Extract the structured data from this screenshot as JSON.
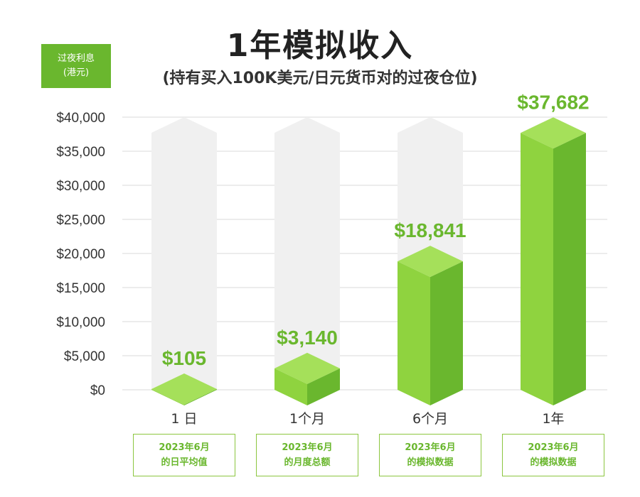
{
  "title": "1年模拟收入",
  "subtitle": "(持有买入100K美元/日元货币对的过夜仓位)",
  "unit_box": {
    "line1": "过夜利息",
    "line2": "(港元)",
    "color": "#6ab72e"
  },
  "colors": {
    "bar_front": "#8fd33f",
    "bar_side": "#6ab72e",
    "bar_top": "#a5e05a",
    "ghost": "#f0f0f0",
    "label": "#6ab72e"
  },
  "chart_data": {
    "type": "bar",
    "title": "1年模拟收入",
    "subtitle": "(持有买入100K美元/日元货币对的过夜仓位)",
    "ylabel": "过夜利息 (港元)",
    "xlabel": "",
    "categories": [
      "1 日",
      "1个月",
      "6个月",
      "1年"
    ],
    "values": [
      105,
      3140,
      18841,
      37682
    ],
    "value_labels": [
      "$105",
      "$3,140",
      "$18,841",
      "$37,682"
    ],
    "ylim": [
      0,
      40000
    ],
    "yticks": [
      {
        "value": 0,
        "label": "$0"
      },
      {
        "value": 5000,
        "label": "$5,000"
      },
      {
        "value": 10000,
        "label": "$10,000"
      },
      {
        "value": 15000,
        "label": "$15,000"
      },
      {
        "value": 20000,
        "label": "$20,000"
      },
      {
        "value": 25000,
        "label": "$25,000"
      },
      {
        "value": 30000,
        "label": "$30,000"
      },
      {
        "value": 35000,
        "label": "$35,000"
      },
      {
        "value": 40000,
        "label": "$40,000"
      }
    ],
    "grid": true,
    "legend": "none"
  },
  "notes": [
    {
      "line1": "2023年6月",
      "line2": "的日平均值"
    },
    {
      "line1": "2023年6月",
      "line2": "的月度总额"
    },
    {
      "line1": "2023年6月",
      "line2": "的模拟数据"
    },
    {
      "line1": "2023年6月",
      "line2": "的模拟数据"
    }
  ]
}
